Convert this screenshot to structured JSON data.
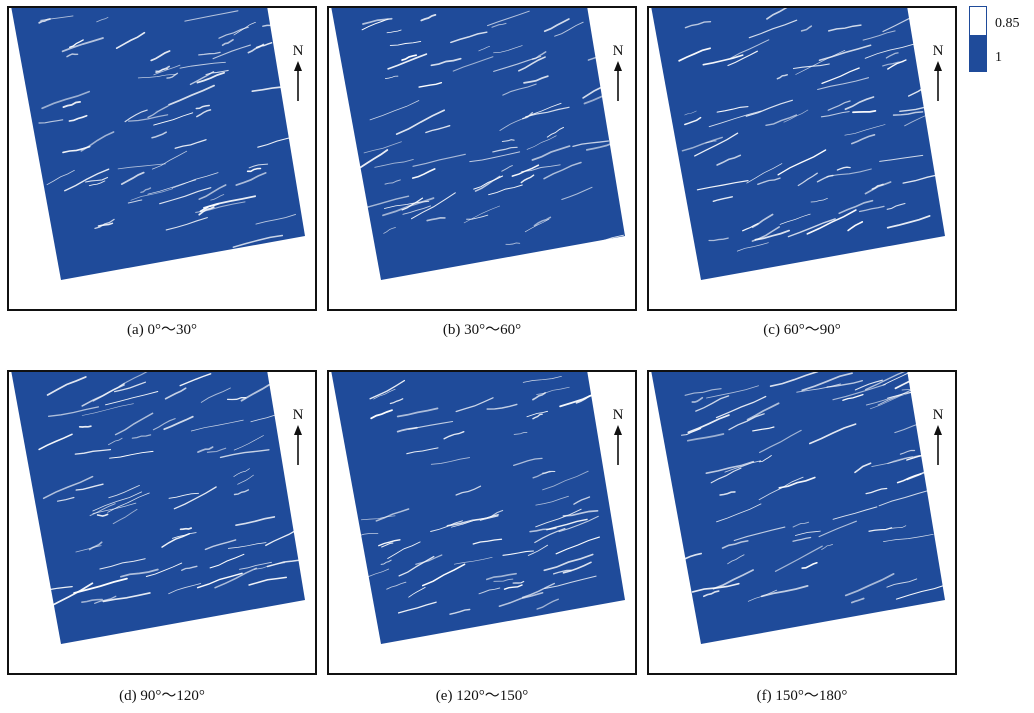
{
  "figure": {
    "panels": [
      {
        "label": "(a) 0°～30°"
      },
      {
        "label": "(b) 30°～60°"
      },
      {
        "label": "(c) 60°～90°"
      },
      {
        "label": "(d) 90°～120°"
      },
      {
        "label": "(e) 120°～150°"
      },
      {
        "label": "(f) 150°～180°"
      }
    ],
    "north_label": "N",
    "legend": {
      "items": [
        {
          "label": "0.85",
          "color": "#ffffff"
        },
        {
          "label": "1",
          "color": "#1f4b9a"
        }
      ]
    },
    "colors": {
      "fill": "#1f4b9a",
      "lineament": "#ffffff",
      "frame": "#111111"
    },
    "icons": {
      "north": "north-arrow-icon"
    }
  }
}
